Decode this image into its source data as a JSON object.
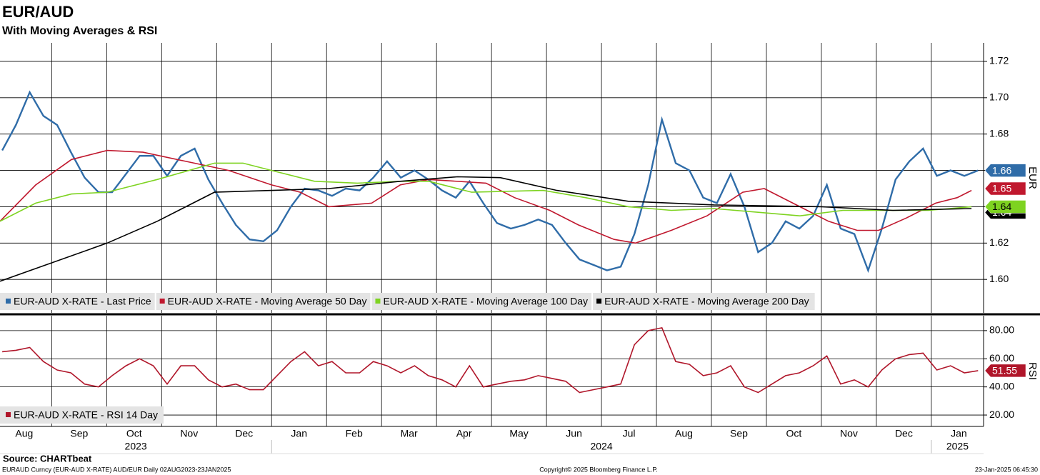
{
  "title": "EUR/AUD",
  "subtitle": "With Moving Averages & RSI",
  "chart_data": [
    {
      "type": "line",
      "y_axis_label": "EUR",
      "ylim": [
        1.5816,
        1.7302
      ],
      "yticks": [
        {
          "value": 1.6,
          "label": "1.60"
        },
        1.62,
        1.64,
        1.66,
        1.68,
        {
          "value": 1.7,
          "label": "1.70"
        },
        1.72
      ],
      "grid": true,
      "series": [
        {
          "name": "EUR-AUD X-RATE - Last Price",
          "color": "#2f6ca8",
          "end_label": 1.66,
          "x": [
            0.1,
            0.35,
            0.6,
            0.85,
            1.1,
            1.35,
            1.6,
            1.85,
            2.1,
            2.35,
            2.6,
            2.85,
            3.1,
            3.35,
            3.6,
            3.85,
            4.1,
            4.35,
            4.6,
            4.85,
            5.1,
            5.35,
            5.6,
            5.85,
            6.1,
            6.35,
            6.6,
            6.85,
            7.1,
            7.35,
            7.6,
            7.85,
            8.1,
            8.35,
            8.6,
            8.85,
            9.1,
            9.35,
            9.6,
            9.85,
            10.1,
            10.35,
            10.6,
            10.85,
            11.1,
            11.35,
            11.6,
            11.85,
            12.1,
            12.35,
            12.6,
            12.85,
            13.1,
            13.35,
            13.6,
            13.85,
            14.1,
            14.35,
            14.6,
            14.85,
            15.1,
            15.35,
            15.6,
            15.85,
            16.1,
            16.35,
            16.6,
            16.85,
            17.1,
            17.35,
            17.6,
            17.85
          ],
          "values": [
            1.671,
            1.685,
            1.703,
            1.69,
            1.685,
            1.67,
            1.656,
            1.648,
            1.648,
            1.658,
            1.668,
            1.668,
            1.657,
            1.668,
            1.672,
            1.655,
            1.642,
            1.63,
            1.622,
            1.621,
            1.627,
            1.64,
            1.65,
            1.649,
            1.646,
            1.65,
            1.649,
            1.656,
            1.665,
            1.656,
            1.66,
            1.655,
            1.649,
            1.645,
            1.654,
            1.642,
            1.631,
            1.628,
            1.63,
            1.633,
            1.63,
            1.62,
            1.611,
            1.608,
            1.605,
            1.607,
            1.625,
            1.652,
            1.688,
            1.664,
            1.66,
            1.645,
            1.642,
            1.658,
            1.64,
            1.615,
            1.62,
            1.632,
            1.628,
            1.635,
            1.652,
            1.628,
            1.625,
            1.605,
            1.628,
            1.655,
            1.665,
            1.672,
            1.657,
            1.66,
            1.657,
            1.66
          ]
        },
        {
          "name": "EUR-AUD X-RATE - Moving Average 50 Day",
          "color": "#c0182e",
          "end_label": 1.65,
          "x": [
            0.06,
            0.71,
            1.36,
            2.01,
            2.66,
            3.44,
            4.22,
            5.0,
            5.52,
            6.04,
            6.82,
            7.34,
            7.86,
            8.9,
            9.42,
            10.06,
            10.58,
            11.23,
            11.62,
            12.27,
            12.92,
            13.57,
            13.96,
            14.61,
            15.13,
            15.65,
            16.04,
            16.56,
            17.08,
            17.47,
            17.73
          ],
          "values": [
            1.632,
            1.652,
            1.666,
            1.671,
            1.67,
            1.665,
            1.66,
            1.652,
            1.648,
            1.64,
            1.642,
            1.652,
            1.655,
            1.653,
            1.645,
            1.638,
            1.63,
            1.622,
            1.62,
            1.627,
            1.635,
            1.648,
            1.65,
            1.64,
            1.632,
            1.627,
            1.627,
            1.634,
            1.642,
            1.645,
            1.649
          ]
        },
        {
          "name": "EUR-AUD X-RATE - Moving Average 100 Day",
          "color": "#7ed321",
          "end_label": 1.64,
          "x": [
            0.06,
            0.71,
            1.36,
            2.01,
            2.92,
            3.96,
            4.48,
            5.0,
            5.78,
            6.56,
            7.34,
            7.86,
            8.64,
            9.94,
            10.71,
            11.49,
            12.27,
            13.05,
            13.83,
            14.61,
            15.39,
            16.17,
            16.95,
            17.73
          ],
          "values": [
            1.632,
            1.642,
            1.647,
            1.648,
            1.655,
            1.664,
            1.664,
            1.66,
            1.654,
            1.653,
            1.654,
            1.654,
            1.648,
            1.649,
            1.645,
            1.64,
            1.638,
            1.639,
            1.637,
            1.635,
            1.638,
            1.638,
            1.638,
            1.64
          ]
        },
        {
          "name": "EUR-AUD X-RATE - Moving Average 200 Day",
          "color": "#000000",
          "end_label": 1.64,
          "x": [
            0.06,
            2.01,
            2.92,
            3.96,
            5.0,
            6.04,
            7.34,
            8.38,
            9.16,
            10.19,
            11.49,
            13.05,
            15.0,
            16.3,
            17.73
          ],
          "values": [
            1.599,
            1.62,
            1.632,
            1.648,
            1.649,
            1.65,
            1.654,
            1.6565,
            1.656,
            1.649,
            1.643,
            1.641,
            1.64,
            1.638,
            1.639
          ]
        }
      ]
    },
    {
      "type": "line",
      "y_axis_label": "RSI",
      "ylim": [
        11.9,
        90.6
      ],
      "yticks": [
        {
          "value": 20,
          "label": "20.00"
        },
        {
          "value": 40,
          "label": "40.00"
        },
        {
          "value": 60,
          "label": "60.00"
        },
        {
          "value": 80,
          "label": "80.00"
        }
      ],
      "grid": true,
      "xlim": [
        0.06,
        17.95
      ],
      "xticks": [
        {
          "value": 0,
          "label": "Aug"
        },
        {
          "value": 1,
          "label": "Sep"
        },
        {
          "value": 2,
          "label": "Oct"
        },
        {
          "value": 3,
          "label": "Nov"
        },
        {
          "value": 4,
          "label": "Dec"
        },
        {
          "value": 5,
          "label": "Jan"
        },
        {
          "value": 6,
          "label": "Feb"
        },
        {
          "value": 7,
          "label": "Mar"
        },
        {
          "value": 8,
          "label": "Apr"
        },
        {
          "value": 9,
          "label": "May"
        },
        {
          "value": 10,
          "label": "Jun"
        },
        {
          "value": 11,
          "label": "Jul"
        },
        {
          "value": 12,
          "label": "Aug"
        },
        {
          "value": 13,
          "label": "Sep"
        },
        {
          "value": 14,
          "label": "Oct"
        },
        {
          "value": 15,
          "label": "Nov"
        },
        {
          "value": 16,
          "label": "Dec"
        },
        {
          "value": 17,
          "label": "Jan"
        }
      ],
      "year_ticks": [
        {
          "value": 0,
          "label": "2023"
        },
        {
          "value": 5,
          "label": "2024"
        },
        {
          "value": 17,
          "label": "2025"
        }
      ],
      "series": [
        {
          "name": "EUR-AUD X-RATE - RSI 14 Day",
          "color": "#b0162a",
          "end_label": 51.55,
          "x": [
            0.1,
            0.35,
            0.6,
            0.85,
            1.1,
            1.35,
            1.6,
            1.85,
            2.1,
            2.35,
            2.6,
            2.85,
            3.1,
            3.35,
            3.6,
            3.85,
            4.1,
            4.35,
            4.6,
            4.85,
            5.1,
            5.35,
            5.6,
            5.85,
            6.1,
            6.35,
            6.6,
            6.85,
            7.1,
            7.35,
            7.6,
            7.85,
            8.1,
            8.35,
            8.6,
            8.85,
            9.1,
            9.35,
            9.6,
            9.85,
            10.1,
            10.35,
            10.6,
            10.85,
            11.1,
            11.35,
            11.6,
            11.85,
            12.1,
            12.35,
            12.6,
            12.85,
            13.1,
            13.35,
            13.6,
            13.85,
            14.1,
            14.35,
            14.6,
            14.85,
            15.1,
            15.35,
            15.6,
            15.85,
            16.1,
            16.35,
            16.6,
            16.85,
            17.1,
            17.35,
            17.6,
            17.85
          ],
          "values": [
            65,
            66,
            68,
            58,
            52,
            50,
            42,
            40,
            48,
            55,
            60,
            55,
            42,
            55,
            55,
            45,
            40,
            42,
            38,
            38,
            48,
            58,
            65,
            55,
            58,
            50,
            50,
            58,
            55,
            50,
            55,
            48,
            45,
            40,
            55,
            40,
            42,
            44,
            45,
            48,
            46,
            44,
            36,
            38,
            40,
            42,
            70,
            80,
            82,
            58,
            56,
            48,
            50,
            55,
            40,
            36,
            42,
            48,
            50,
            55,
            62,
            42,
            45,
            40,
            52,
            60,
            63,
            64,
            52,
            55,
            50,
            51.55
          ]
        }
      ]
    }
  ],
  "source": "Source: CHARTbeat",
  "footer": {
    "left": "EURAUD Curncy (EUR-AUD X-RATE) AUD/EUR  Daily 02AUG2023-23JAN2025",
    "center": "Copyright© 2025 Bloomberg Finance L.P.",
    "right": "23-Jan-2025 06:45:30"
  }
}
